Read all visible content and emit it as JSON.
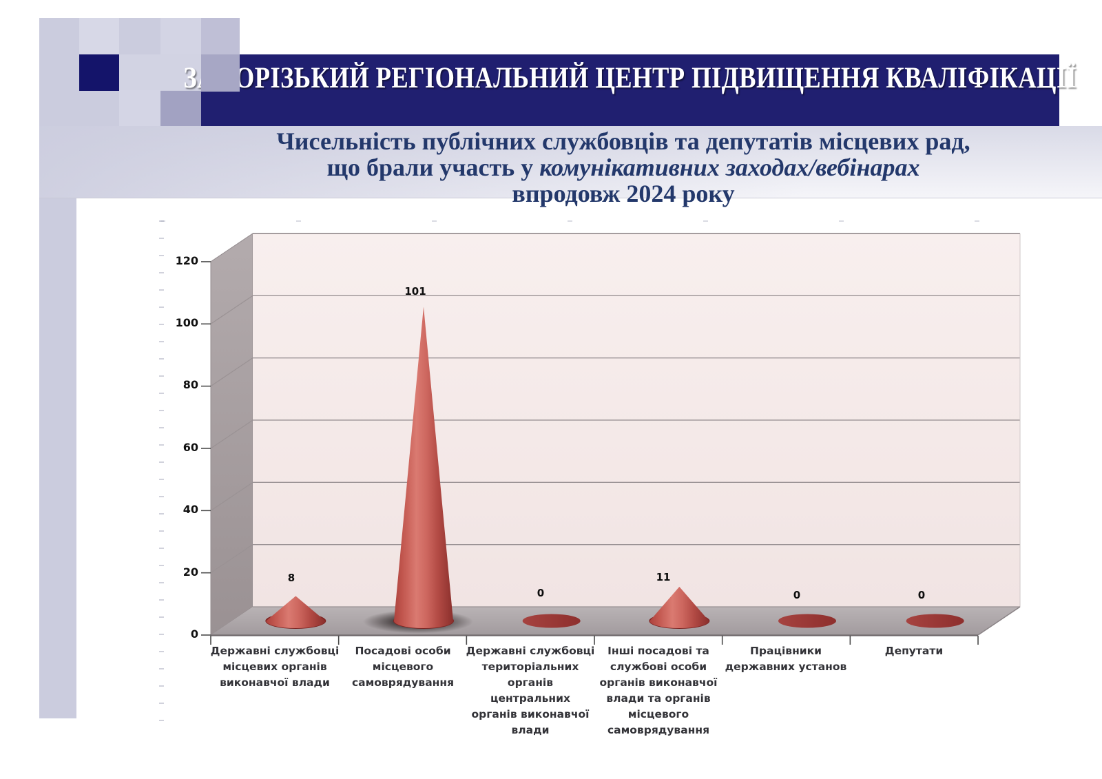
{
  "slide": {
    "banner": {
      "text": "ЗАПОРІЗЬКИЙ РЕГІОНАЛЬНИЙ ЦЕНТР ПІДВИЩЕННЯ КВАЛІФІКАЦІЇ",
      "bg_color": "#201f70",
      "text_color": "#ffffff"
    },
    "title": {
      "line1": "Чисельність публічних службовців та депутатів місцевих рад,",
      "line2_regular": "що брали участь у ",
      "line2_italic": "комунікативних заходах/вебінарах",
      "line3": "впродовж 2024 року",
      "color": "#23386b"
    }
  },
  "chart_data": {
    "type": "bar",
    "subtype": "3d-cone",
    "title": "",
    "xlabel": "",
    "ylabel": "",
    "ylim": [
      0,
      120
    ],
    "ytick_step": 20,
    "yticks": [
      0,
      20,
      40,
      60,
      80,
      100,
      120
    ],
    "grid": true,
    "legend": "none",
    "categories": [
      "Державні службовці місцевих органів виконавчої влади",
      "Посадові особи місцевого самоврядування",
      "Державні службовці територіальних органів центральних органів виконавчої влади",
      "Інші посадові та службові особи органів виконавчої влади та органів місцевого самоврядування",
      "Працівники державних установ",
      "Депутати"
    ],
    "categories_lines": [
      [
        "Державні службовці",
        "місцевих органів",
        "виконавчої влади"
      ],
      [
        "Посадові особи",
        "місцевого",
        "самоврядування"
      ],
      [
        "Державні службовці",
        "територіальних",
        "органів",
        "центральних",
        "органів виконавчої",
        "влади"
      ],
      [
        "Інші посадові та",
        "службові особи",
        "органів виконавчої",
        "влади та органів",
        "місцевого",
        "самоврядування"
      ],
      [
        "Працівники",
        "державних установ"
      ],
      [
        "Депутати"
      ]
    ],
    "values": [
      8,
      101,
      0,
      11,
      0,
      0
    ],
    "colors": {
      "cone": "#c0504d",
      "cone_dark_rim": "#7e2624",
      "back_wall": "#f5eaea",
      "side_wall": "#a59da0",
      "floor": "#aca5a7",
      "gridline": "#9a9294",
      "axis_label": "#111111",
      "category_label": "#333338",
      "data_label": "#0d0d0d"
    }
  }
}
